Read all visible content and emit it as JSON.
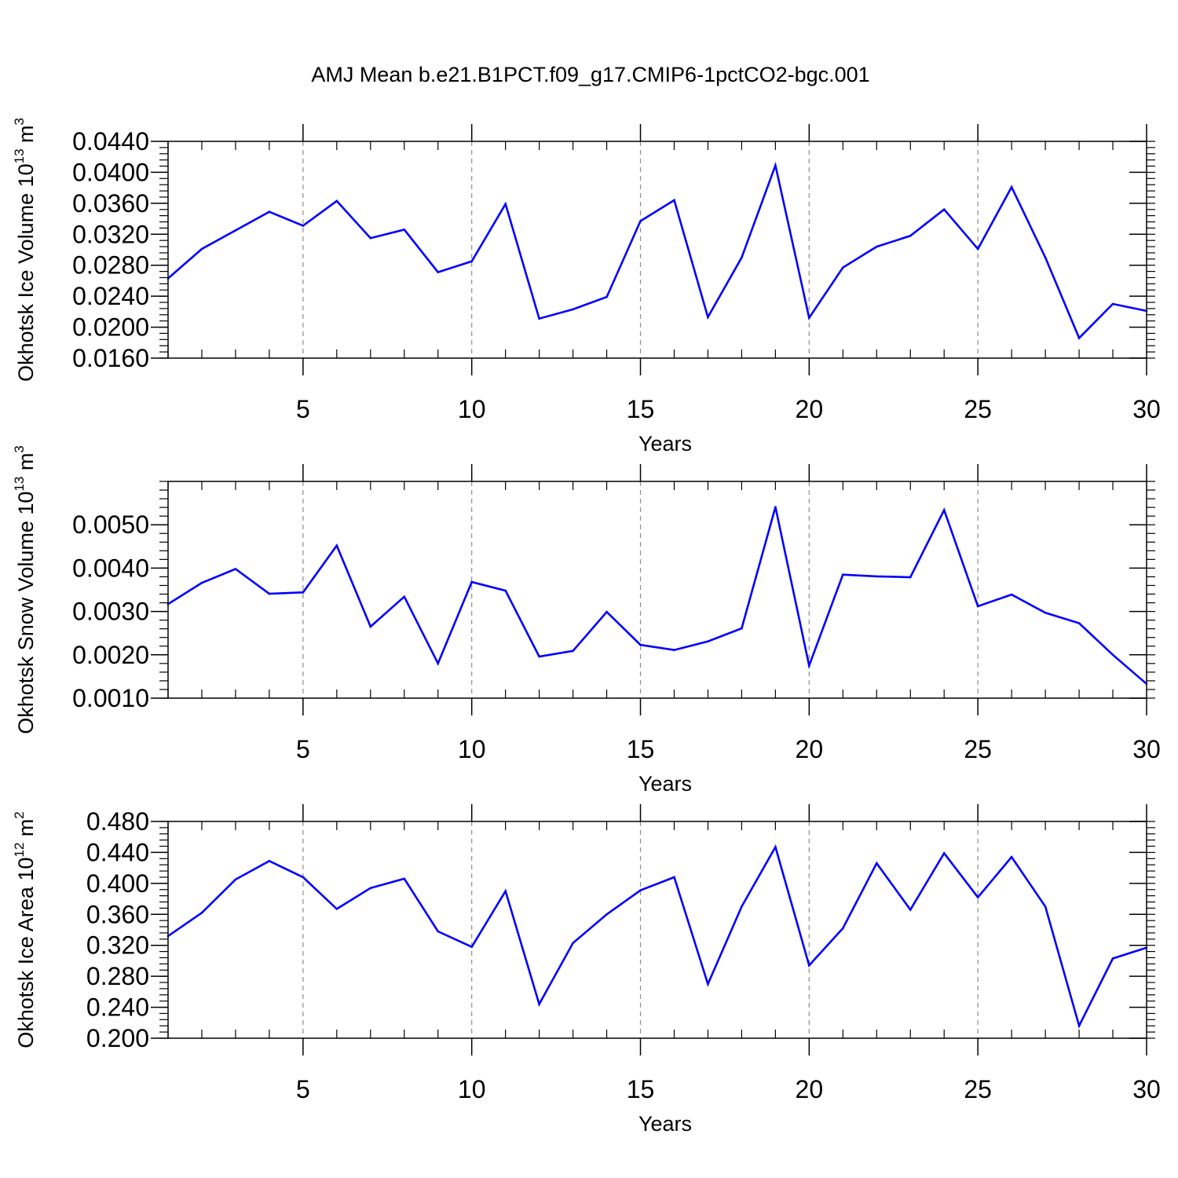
{
  "figure": {
    "title": "AMJ Mean b.e21.B1PCT.f09_g17.CMIP6-1pctCO2-bgc.001",
    "line_color": "#0000ff"
  },
  "chart_data": [
    {
      "type": "line",
      "title": "AMJ Mean b.e21.B1PCT.f09_g17.CMIP6-1pctCO2-bgc.001",
      "xlabel": "Years",
      "ylabel": "Okhotsk Ice Volume 10",
      "ylabel_exp": "13",
      "ylabel_unit": " m",
      "ylabel_unit_exp": "3",
      "xlim": [
        1,
        30
      ],
      "ylim": [
        0.016,
        0.044
      ],
      "xticks": [
        5,
        10,
        15,
        20,
        25,
        30
      ],
      "xtick_labels": [
        "5",
        "10",
        "15",
        "20",
        "25",
        "30"
      ],
      "yticks": [
        0.016,
        0.02,
        0.024,
        0.028,
        0.032,
        0.036,
        0.04,
        0.044
      ],
      "ytick_labels": [
        "0.0160",
        "0.0200",
        "0.0240",
        "0.0280",
        "0.0320",
        "0.0360",
        "0.0400",
        "0.0440"
      ],
      "yminor_step": 0.0008,
      "grid": "vertical dashed at major x ticks",
      "series": [
        {
          "name": "Okhotsk Ice Volume",
          "x": [
            1,
            2,
            3,
            4,
            5,
            6,
            7,
            8,
            9,
            10,
            11,
            12,
            13,
            14,
            15,
            16,
            17,
            18,
            19,
            20,
            21,
            22,
            23,
            24,
            25,
            26,
            27,
            28,
            29,
            30
          ],
          "values": [
            0.0263,
            0.0301,
            0.0325,
            0.0349,
            0.0331,
            0.0363,
            0.0315,
            0.0326,
            0.0271,
            0.0285,
            0.0359,
            0.0211,
            0.0223,
            0.0239,
            0.0337,
            0.0364,
            0.0213,
            0.029,
            0.0409,
            0.0212,
            0.0277,
            0.0304,
            0.0318,
            0.0352,
            0.0301,
            0.0381,
            0.029,
            0.0186,
            0.023,
            0.0221
          ]
        }
      ]
    },
    {
      "type": "line",
      "xlabel": "Years",
      "ylabel": "Okhotsk Snow Volume 10",
      "ylabel_exp": "13",
      "ylabel_unit": " m",
      "ylabel_unit_exp": "3",
      "xlim": [
        1,
        30
      ],
      "ylim": [
        0.001,
        0.006
      ],
      "xticks": [
        5,
        10,
        15,
        20,
        25,
        30
      ],
      "xtick_labels": [
        "5",
        "10",
        "15",
        "20",
        "25",
        "30"
      ],
      "yticks": [
        0.001,
        0.002,
        0.003,
        0.004,
        0.005
      ],
      "ytick_labels": [
        "0.0010",
        "0.0020",
        "0.0030",
        "0.0040",
        "0.0050"
      ],
      "yminor_step": 0.0002,
      "grid": "vertical dashed at major x ticks",
      "series": [
        {
          "name": "Okhotsk Snow Volume",
          "x": [
            1,
            2,
            3,
            4,
            5,
            6,
            7,
            8,
            9,
            10,
            11,
            12,
            13,
            14,
            15,
            16,
            17,
            18,
            19,
            20,
            21,
            22,
            23,
            24,
            25,
            26,
            27,
            28,
            29,
            30
          ],
          "values": [
            0.00317,
            0.00366,
            0.00398,
            0.00341,
            0.00344,
            0.00452,
            0.00265,
            0.00334,
            0.0018,
            0.00368,
            0.00348,
            0.00196,
            0.00209,
            0.00299,
            0.00223,
            0.00211,
            0.00231,
            0.00261,
            0.00541,
            0.00175,
            0.00385,
            0.00381,
            0.00379,
            0.00534,
            0.00312,
            0.00339,
            0.00297,
            0.00273,
            0.002,
            0.00133
          ]
        }
      ]
    },
    {
      "type": "line",
      "xlabel": "Years",
      "ylabel": "Okhotsk Ice Area 10",
      "ylabel_exp": "12",
      "ylabel_unit": " m",
      "ylabel_unit_exp": "2",
      "xlim": [
        1,
        30
      ],
      "ylim": [
        0.2,
        0.48
      ],
      "xticks": [
        5,
        10,
        15,
        20,
        25,
        30
      ],
      "xtick_labels": [
        "5",
        "10",
        "15",
        "20",
        "25",
        "30"
      ],
      "yticks": [
        0.2,
        0.24,
        0.28,
        0.32,
        0.36,
        0.4,
        0.44,
        0.48
      ],
      "ytick_labels": [
        "0.200",
        "0.240",
        "0.280",
        "0.320",
        "0.360",
        "0.400",
        "0.440",
        "0.480"
      ],
      "yminor_step": 0.008,
      "grid": "vertical dashed at major x ticks",
      "series": [
        {
          "name": "Okhotsk Ice Area",
          "x": [
            1,
            2,
            3,
            4,
            5,
            6,
            7,
            8,
            9,
            10,
            11,
            12,
            13,
            14,
            15,
            16,
            17,
            18,
            19,
            20,
            21,
            22,
            23,
            24,
            25,
            26,
            27,
            28,
            29,
            30
          ],
          "values": [
            0.332,
            0.362,
            0.405,
            0.429,
            0.408,
            0.367,
            0.394,
            0.406,
            0.338,
            0.318,
            0.39,
            0.244,
            0.323,
            0.36,
            0.391,
            0.408,
            0.27,
            0.37,
            0.447,
            0.294,
            0.342,
            0.426,
            0.366,
            0.439,
            0.382,
            0.434,
            0.37,
            0.216,
            0.303,
            0.317
          ]
        }
      ]
    }
  ]
}
